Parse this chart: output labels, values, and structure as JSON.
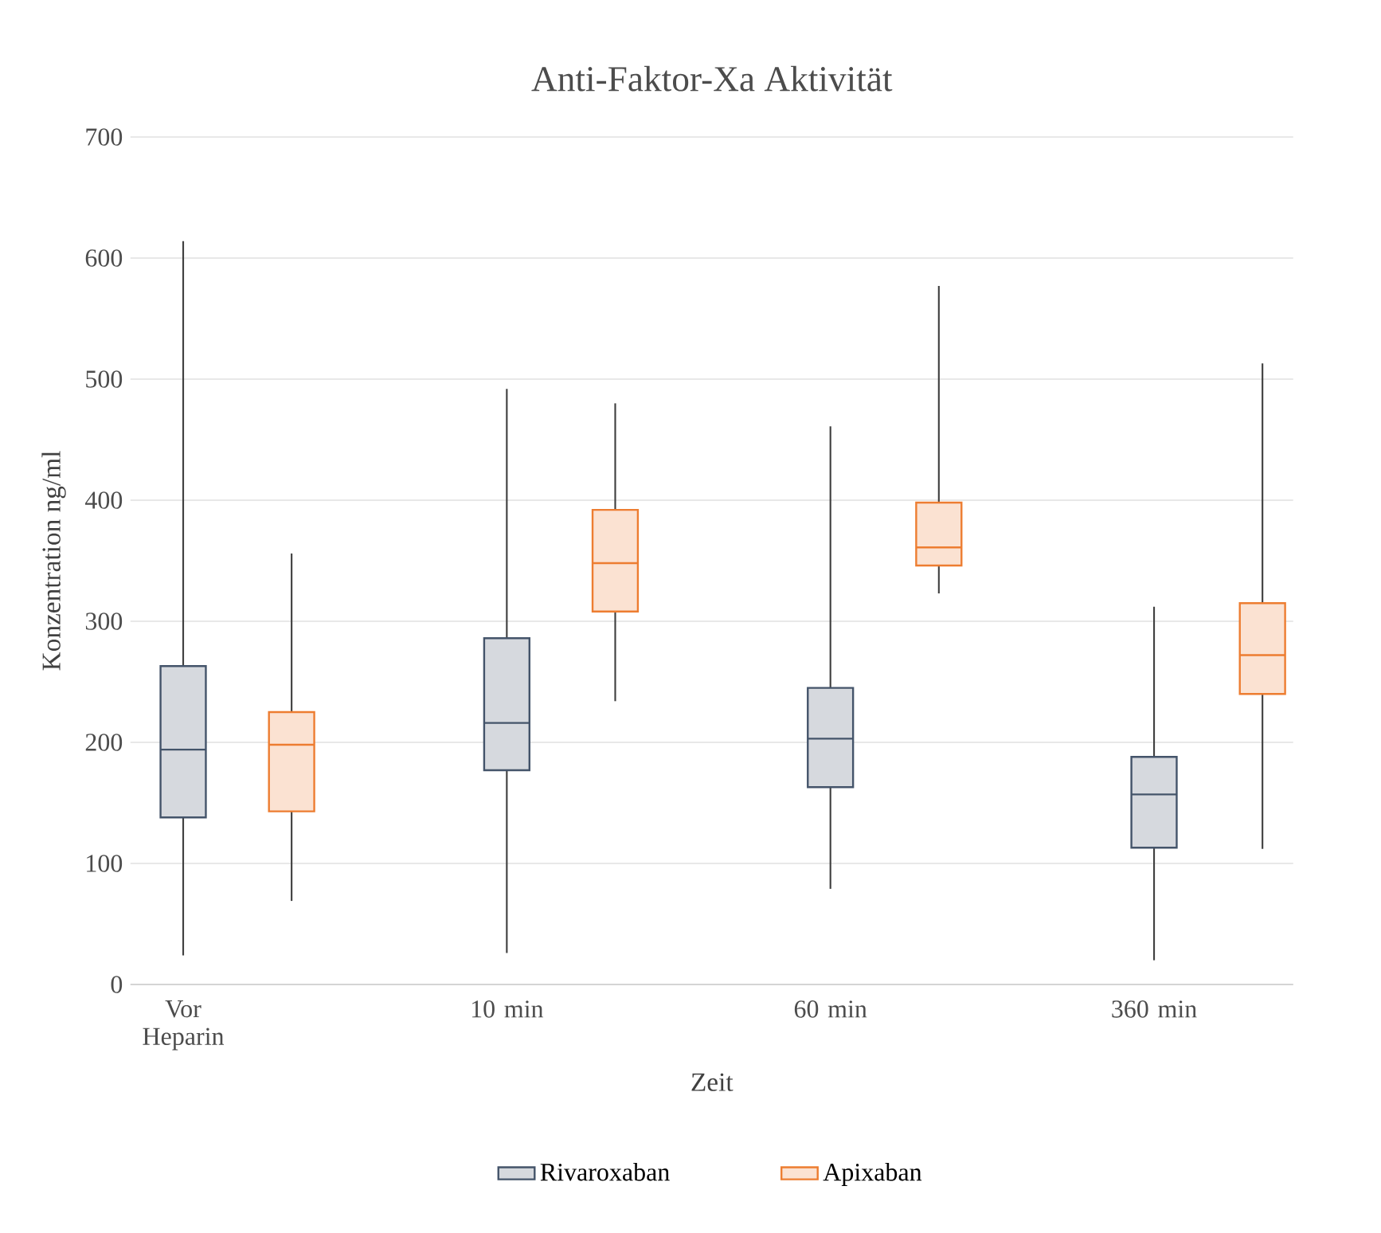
{
  "chart_data": {
    "type": "box",
    "title": "Anti-Faktor-Xa Aktivität",
    "xlabel": "Zeit",
    "ylabel": "Konzentration ng/ml",
    "categories": [
      "Vor Heparin",
      "10 min",
      "60 min",
      "360 min"
    ],
    "series": [
      {
        "name": "Rivaroxaban",
        "color": "#44546a",
        "boxes": [
          {
            "low": 24,
            "q1": 138,
            "median": 194,
            "q3": 263,
            "high": 614
          },
          {
            "low": 26,
            "q1": 177,
            "median": 216,
            "q3": 286,
            "high": 492
          },
          {
            "low": 79,
            "q1": 163,
            "median": 203,
            "q3": 245,
            "high": 461
          },
          {
            "low": 20,
            "q1": 113,
            "median": 157,
            "q3": 188,
            "high": 312
          }
        ]
      },
      {
        "name": "Apixaban",
        "color": "#ed7d31",
        "boxes": [
          {
            "low": 69,
            "q1": 143,
            "median": 198,
            "q3": 225,
            "high": 356
          },
          {
            "low": 234,
            "q1": 308,
            "median": 348,
            "q3": 392,
            "high": 480
          },
          {
            "low": 323,
            "q1": 346,
            "median": 361,
            "q3": 398,
            "high": 577
          },
          {
            "low": 112,
            "q1": 240,
            "median": 272,
            "q3": 315,
            "high": 513
          }
        ]
      }
    ],
    "ylim": [
      0,
      700
    ],
    "yticks": [
      0,
      100,
      200,
      300,
      400,
      500,
      600,
      700
    ],
    "grid": "y",
    "legend": "bottom"
  }
}
